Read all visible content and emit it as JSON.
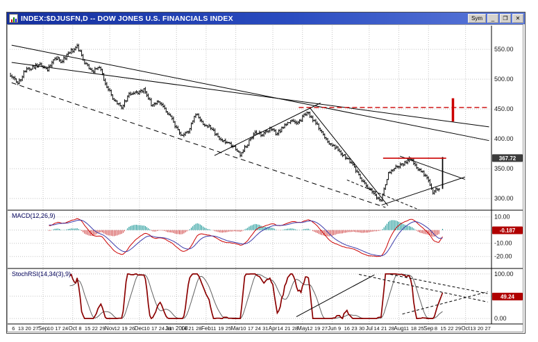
{
  "window": {
    "title": "INDEX:$DJUSFN,D -- DOW JONES U.S. FINANCIALS INDEX",
    "controls": {
      "sym": "Sym",
      "minimize_glyph": "_",
      "restore_glyph": "❐",
      "close_glyph": "✕"
    }
  },
  "colors": {
    "grid": "#c2c2c2",
    "bar": "#000000",
    "badge_price_bg": "#3c3c3c",
    "badge_indicator_bg": "#b00000",
    "macd_hist_pos": "#008b8b",
    "macd_hist_neg": "#cc3333",
    "macd_line": "#cc0000",
    "macd_signal": "#3a3aaa",
    "stoch_k": "#8b0000",
    "stoch_d": "#606060",
    "annotation": "#000000",
    "annotation_red": "#cc0000",
    "axis_text": "#111111",
    "pane_label": "#00005a"
  },
  "chart_data": [
    {
      "type": "candlestick",
      "title": "Dow Jones U.S. Financials Index, daily OHLC bars",
      "symbol": "INDEX:$DJUSFN",
      "periodicity": "D",
      "ylim": [
        285,
        585
      ],
      "y_ticks": [
        {
          "v": 550,
          "label": "550.00"
        },
        {
          "v": 500,
          "label": "500.00"
        },
        {
          "v": 450,
          "label": "450.00"
        },
        {
          "v": 400,
          "label": "400.00"
        },
        {
          "v": 350,
          "label": "350.00"
        },
        {
          "v": 300,
          "label": "300.00"
        }
      ],
      "last_price": 367.72,
      "last_label": "367.72",
      "x_axis": {
        "weeks_total": 65,
        "labels": [
          "6",
          "13",
          "20",
          "27",
          "Sep",
          "10",
          "17",
          "24",
          "Oct",
          "8",
          "15",
          "22",
          "29",
          "Nov",
          "12",
          "19",
          "26",
          "Dec",
          "10",
          "17",
          "24",
          "31",
          "Jan 2008",
          "14",
          "21",
          "28",
          "Feb",
          "11",
          "19",
          "25",
          "Mar",
          "10",
          "17",
          "24",
          "31",
          "Apr",
          "14",
          "21",
          "28",
          "May",
          "12",
          "19",
          "27",
          "Jun",
          "9",
          "16",
          "23",
          "30",
          "Jul",
          "14",
          "21",
          "28",
          "Aug",
          "11",
          "18",
          "25",
          "Sep",
          "8",
          "15",
          "22",
          "29",
          "Oct",
          "13",
          "20",
          "27"
        ],
        "month_indices": [
          4,
          8,
          13,
          17,
          22,
          26,
          30,
          35,
          39,
          43,
          48,
          52,
          56,
          61
        ]
      },
      "weekly_closes": [
        508,
        492,
        515,
        520,
        525,
        515,
        535,
        530,
        545,
        555,
        528,
        512,
        520,
        488,
        465,
        452,
        475,
        478,
        482,
        458,
        464,
        448,
        428,
        405,
        412,
        442,
        424,
        418,
        402,
        396,
        388,
        374,
        392,
        412,
        406,
        418,
        408,
        424,
        428,
        430,
        445,
        428,
        412,
        392,
        384,
        372,
        358,
        338,
        322,
        308,
        296,
        342,
        352,
        358,
        368,
        350,
        338,
        312,
        367.72
      ],
      "annotations": [
        {
          "x1": 0.004,
          "p1": 557,
          "x2": 0.995,
          "p2": 397,
          "c": "annotation",
          "w": 1
        },
        {
          "x1": 0.004,
          "p1": 528,
          "x2": 0.995,
          "p2": 420,
          "c": "annotation",
          "w": 1
        },
        {
          "x1": 0.425,
          "p1": 372,
          "x2": 0.645,
          "p2": 460,
          "c": "annotation",
          "w": 1
        },
        {
          "x1": 0.623,
          "p1": 452,
          "x2": 0.785,
          "p2": 288,
          "c": "annotation",
          "w": 1
        },
        {
          "x1": 0.772,
          "p1": 289,
          "x2": 0.945,
          "p2": 336,
          "c": "annotation",
          "w": 1
        },
        {
          "x1": 0.81,
          "p1": 371,
          "x2": 0.945,
          "p2": 332,
          "c": "annotation",
          "w": 1
        },
        {
          "x1": 0.004,
          "p1": 494,
          "x2": 0.78,
          "p2": 285,
          "c": "annotation",
          "w": 1,
          "dash": "7,5"
        },
        {
          "x1": 0.7,
          "p1": 331,
          "x2": 0.85,
          "p2": 281,
          "c": "annotation",
          "w": 1,
          "dash": "4,3"
        },
        {
          "x1": 0.775,
          "p1": 367.5,
          "x2": 0.906,
          "p2": 367.5,
          "c": "annotation_red",
          "w": 1.6
        },
        {
          "x1": 0.6,
          "p1": 452.5,
          "x2": 0.992,
          "p2": 452.5,
          "c": "annotation_red",
          "w": 1.3,
          "dash": "7,4"
        },
        {
          "x1": 0.92,
          "p1": 429,
          "x2": 0.92,
          "p2": 468,
          "c": "annotation_red",
          "w": 3.5
        }
      ]
    },
    {
      "type": "line",
      "label": "MACD(12,26,9)",
      "params": [
        12,
        26,
        9
      ],
      "ylim": [
        -27,
        13
      ],
      "y_ticks": [
        {
          "v": 10,
          "label": "10.00"
        },
        {
          "v": 0,
          "label": "0.00"
        },
        {
          "v": -10,
          "label": "-10.00"
        },
        {
          "v": -20,
          "label": "-20.00"
        }
      ],
      "last_value": -0.187,
      "last_label": "-0.187"
    },
    {
      "type": "line",
      "label": "StochRSI(14,34(3),9)",
      "ylim": [
        -6,
        106
      ],
      "y_ticks": [
        {
          "v": 100,
          "label": "100.00"
        },
        {
          "v": 50,
          "label": "50.00"
        },
        {
          "v": 0,
          "label": "0.00"
        }
      ],
      "last_value": 49.24,
      "last_label": "49.24",
      "annotations": [
        {
          "x1": 0.595,
          "y1": 4,
          "x2": 0.757,
          "y2": 98,
          "c": "annotation",
          "w": 1
        },
        {
          "x1": 0.725,
          "y1": 99,
          "x2": 0.992,
          "y2": 37,
          "c": "annotation",
          "w": 1,
          "dash": "4,3"
        },
        {
          "x1": 0.79,
          "y1": 99,
          "x2": 0.992,
          "y2": 56,
          "c": "annotation",
          "w": 1,
          "dash": "4,3"
        },
        {
          "x1": 0.815,
          "y1": 10,
          "x2": 0.992,
          "y2": 60,
          "c": "annotation",
          "w": 1,
          "dash": "4,3"
        }
      ]
    }
  ]
}
